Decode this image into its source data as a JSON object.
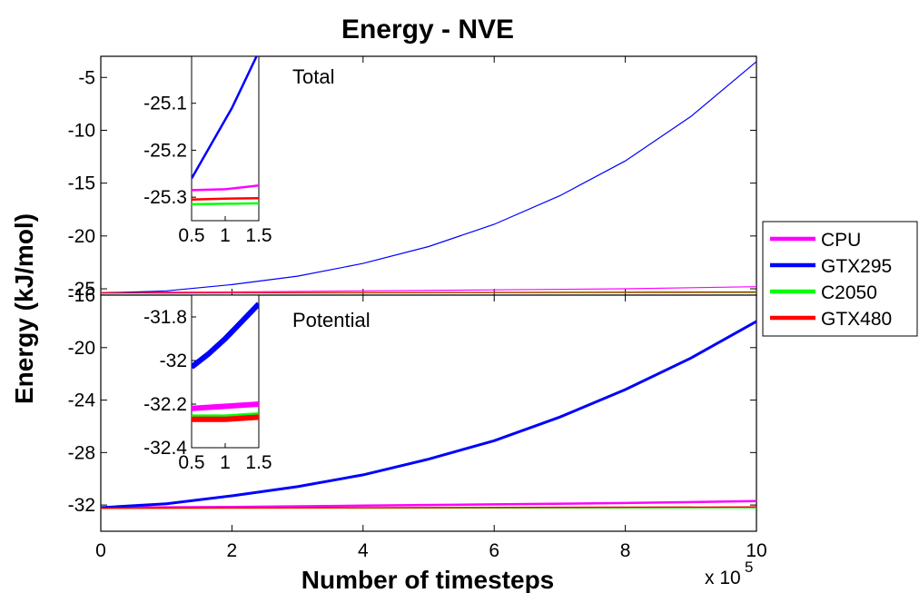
{
  "title": "Energy - NVE",
  "xlabel": "Number of timesteps",
  "ylabel": "Energy (kJ/mol)",
  "x_multiplier": {
    "base": "x 10",
    "exponent": "5"
  },
  "colors": {
    "CPU": "#ff00ff",
    "GTX295": "#0000ff",
    "C2050": "#00ff00",
    "GTX480": "#ff0000"
  },
  "chart_data": [
    {
      "type": "line",
      "panel": "top",
      "label": "Total",
      "x_unit_multiplier": 100000,
      "xlim": [
        0,
        10
      ],
      "ylim": [
        -25.6,
        -3
      ],
      "yticks": [
        -25,
        -20,
        -15,
        -10,
        -5
      ],
      "series": [
        {
          "name": "CPU",
          "x": [
            0,
            2,
            4,
            6,
            8,
            10
          ],
          "y": [
            -25.35,
            -25.3,
            -25.2,
            -25.1,
            -25.0,
            -24.8
          ]
        },
        {
          "name": "GTX295",
          "x": [
            0,
            1,
            2,
            3,
            4,
            5,
            6,
            7,
            8,
            9,
            10
          ],
          "y": [
            -25.4,
            -25.2,
            -24.6,
            -23.8,
            -22.6,
            -21.0,
            -18.9,
            -16.2,
            -12.9,
            -8.7,
            -3.5
          ]
        },
        {
          "name": "C2050",
          "x": [
            0,
            10
          ],
          "y": [
            -25.4,
            -25.35
          ]
        },
        {
          "name": "GTX480",
          "x": [
            0,
            10
          ],
          "y": [
            -25.4,
            -25.3
          ]
        }
      ],
      "inset": {
        "xlim": [
          0.5,
          1.5
        ],
        "ylim": [
          -25.35,
          -25.0
        ],
        "xticks": [
          0.5,
          1,
          1.5
        ],
        "yticks": [
          -25.3,
          -25.2,
          -25.1
        ],
        "series": [
          {
            "name": "GTX295",
            "x": [
              0.5,
              0.7,
              0.9,
              1.1,
              1.3,
              1.5
            ],
            "y": [
              -25.26,
              -25.21,
              -25.16,
              -25.11,
              -25.05,
              -24.99
            ]
          },
          {
            "name": "CPU",
            "x": [
              0.5,
              1.0,
              1.5
            ],
            "y": [
              -25.285,
              -25.283,
              -25.275
            ]
          },
          {
            "name": "GTX480",
            "x": [
              0.5,
              1.0,
              1.5
            ],
            "y": [
              -25.305,
              -25.303,
              -25.302
            ]
          },
          {
            "name": "C2050",
            "x": [
              0.5,
              1.0,
              1.5
            ],
            "y": [
              -25.315,
              -25.314,
              -25.313
            ]
          }
        ]
      }
    },
    {
      "type": "line",
      "panel": "bottom",
      "label": "Potential",
      "x_unit_multiplier": 100000,
      "xlim": [
        0,
        10
      ],
      "xticks": [
        0,
        2,
        4,
        6,
        8,
        10
      ],
      "ylim": [
        -34,
        -16
      ],
      "yticks": [
        -32,
        -28,
        -24,
        -20,
        -16
      ],
      "series": [
        {
          "name": "CPU",
          "x": [
            0,
            2,
            4,
            6,
            8,
            10
          ],
          "y": [
            -32.2,
            -32.15,
            -32.05,
            -31.95,
            -31.85,
            -31.7
          ]
        },
        {
          "name": "GTX295",
          "x": [
            0,
            1,
            2,
            3,
            4,
            5,
            6,
            7,
            8,
            9,
            10
          ],
          "y": [
            -32.2,
            -31.9,
            -31.3,
            -30.6,
            -29.7,
            -28.5,
            -27.1,
            -25.3,
            -23.2,
            -20.8,
            -18.0
          ]
        },
        {
          "name": "C2050",
          "x": [
            0,
            10
          ],
          "y": [
            -32.25,
            -32.2
          ]
        },
        {
          "name": "GTX480",
          "x": [
            0,
            10
          ],
          "y": [
            -32.25,
            -32.15
          ]
        }
      ],
      "inset": {
        "xlim": [
          0.5,
          1.5
        ],
        "ylim": [
          -32.4,
          -31.7
        ],
        "xticks": [
          0.5,
          1,
          1.5
        ],
        "yticks": [
          -32.4,
          -32.2,
          -32,
          -31.8
        ],
        "series": [
          {
            "name": "GTX295",
            "x": [
              0.5,
              0.75,
              1.0,
              1.25,
              1.5
            ],
            "y": [
              -32.03,
              -31.97,
              -31.9,
              -31.82,
              -31.74
            ]
          },
          {
            "name": "CPU",
            "x": [
              0.5,
              1.0,
              1.5
            ],
            "y": [
              -32.22,
              -32.21,
              -32.2
            ]
          },
          {
            "name": "C2050",
            "x": [
              0.5,
              1.0,
              1.5
            ],
            "y": [
              -32.26,
              -32.26,
              -32.25
            ]
          },
          {
            "name": "GTX480",
            "x": [
              0.5,
              1.0,
              1.5
            ],
            "y": [
              -32.27,
              -32.27,
              -32.26
            ]
          }
        ]
      }
    }
  ],
  "legend": [
    {
      "name": "CPU"
    },
    {
      "name": "GTX295"
    },
    {
      "name": "C2050"
    },
    {
      "name": "GTX480"
    }
  ]
}
